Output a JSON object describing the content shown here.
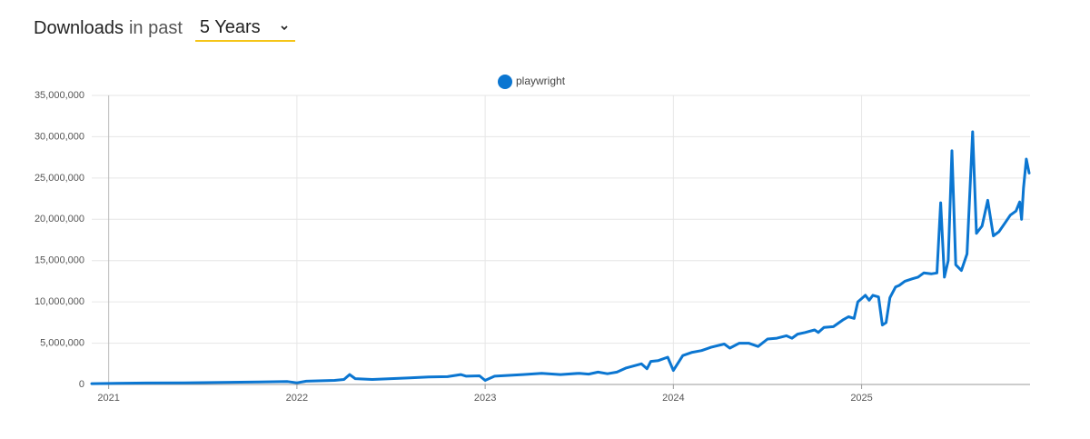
{
  "header": {
    "title": "Downloads",
    "subtitle": "in past",
    "period": "5 Years"
  },
  "chart_data": {
    "type": "line",
    "x": [
      2020.91,
      2021.0,
      2021.2,
      2021.4,
      2021.6,
      2021.8,
      2021.95,
      2022.0,
      2022.05,
      2022.2,
      2022.25,
      2022.28,
      2022.31,
      2022.4,
      2022.5,
      2022.6,
      2022.7,
      2022.8,
      2022.87,
      2022.9,
      2022.97,
      2023.0,
      2023.05,
      2023.2,
      2023.3,
      2023.4,
      2023.5,
      2023.55,
      2023.6,
      2023.65,
      2023.7,
      2023.75,
      2023.83,
      2023.86,
      2023.88,
      2023.92,
      2023.97,
      2024.0,
      2024.05,
      2024.1,
      2024.15,
      2024.2,
      2024.27,
      2024.3,
      2024.35,
      2024.4,
      2024.45,
      2024.5,
      2024.55,
      2024.6,
      2024.63,
      2024.66,
      2024.7,
      2024.75,
      2024.77,
      2024.8,
      2024.85,
      2024.9,
      2024.93,
      2024.96,
      2024.98,
      2025.0,
      2025.02,
      2025.04,
      2025.06,
      2025.09,
      2025.11,
      2025.13,
      2025.15,
      2025.18,
      2025.2,
      2025.23,
      2025.27,
      2025.3,
      2025.33,
      2025.37,
      2025.4,
      2025.42,
      2025.44,
      2025.46,
      2025.48,
      2025.5,
      2025.53,
      2025.56,
      2025.59,
      2025.61,
      2025.64,
      2025.67,
      2025.7,
      2025.73,
      2025.76,
      2025.79,
      2025.82,
      2025.84,
      2025.85,
      2025.86,
      2025.875,
      2025.89
    ],
    "series": [
      {
        "name": "playwright",
        "color": "#0b76d1",
        "values": [
          100000,
          120000,
          180000,
          200000,
          250000,
          300000,
          350000,
          200000,
          400000,
          500000,
          600000,
          1200000,
          700000,
          600000,
          700000,
          800000,
          900000,
          950000,
          1200000,
          1000000,
          1050000,
          500000,
          1000000,
          1200000,
          1350000,
          1200000,
          1350000,
          1250000,
          1500000,
          1300000,
          1500000,
          2000000,
          2500000,
          1900000,
          2800000,
          2900000,
          3300000,
          1700000,
          3500000,
          3900000,
          4100000,
          4500000,
          4900000,
          4400000,
          5000000,
          5000000,
          4600000,
          5500000,
          5600000,
          5900000,
          5600000,
          6100000,
          6300000,
          6600000,
          6300000,
          6900000,
          7000000,
          7800000,
          8200000,
          8000000,
          10000000,
          10400000,
          10800000,
          10200000,
          10800000,
          10600000,
          7200000,
          7500000,
          10500000,
          11800000,
          12000000,
          12500000,
          12800000,
          13000000,
          13500000,
          13400000,
          13500000,
          22000000,
          13000000,
          15000000,
          28300000,
          14500000,
          13800000,
          15800000,
          30600000,
          18300000,
          19200000,
          22300000,
          18000000,
          18500000,
          19500000,
          20500000,
          21000000,
          22100000,
          20000000,
          23800000,
          27300000,
          25600000
        ]
      }
    ],
    "xlim": [
      2020.91,
      2025.89
    ],
    "xticks": [
      2021,
      2022,
      2023,
      2024,
      2025
    ],
    "ylim": [
      0,
      35000000
    ],
    "yticks": [
      0,
      {
        "value": 5000000,
        "label": "5,000,000"
      },
      {
        "value": 10000000,
        "label": "10,000,000"
      },
      {
        "value": 15000000,
        "label": "15,000,000"
      },
      {
        "value": 20000000,
        "label": "20,000,000"
      },
      {
        "value": 25000000,
        "label": "25,000,000"
      },
      {
        "value": 30000000,
        "label": "30,000,000"
      },
      {
        "value": 35000000,
        "label": "35,000,000"
      }
    ],
    "grid": true,
    "legend": "top"
  }
}
